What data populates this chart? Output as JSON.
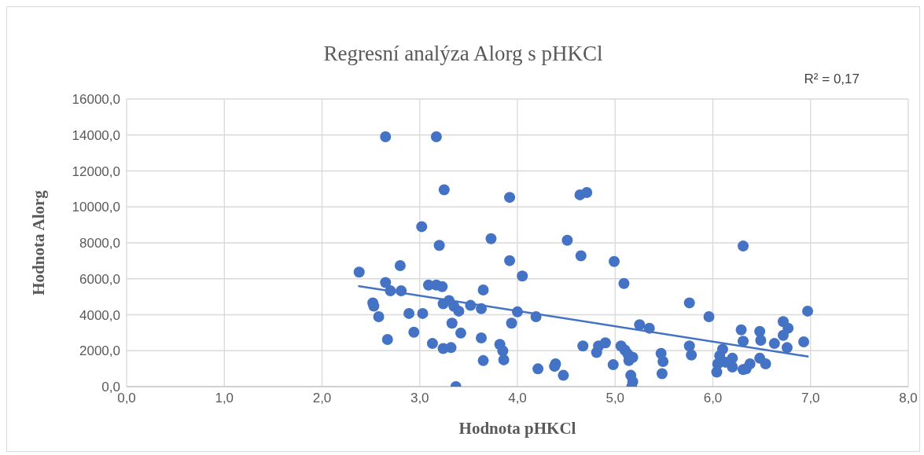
{
  "chart_data": {
    "type": "scatter",
    "title": "Regresní analýza Alorg s pHKCl",
    "xlabel": "Hodnota pHKCl",
    "ylabel": "Hodnota Alorg",
    "annotations": [
      "R² = 0,17"
    ],
    "xlim": [
      0,
      8
    ],
    "xticks": [
      {
        "value": 0,
        "label": "0,0"
      },
      {
        "value": 1,
        "label": "1,0"
      },
      {
        "value": 2,
        "label": "2,0"
      },
      {
        "value": 3,
        "label": "3,0"
      },
      {
        "value": 4,
        "label": "4,0"
      },
      {
        "value": 5,
        "label": "5,0"
      },
      {
        "value": 6,
        "label": "6,0"
      },
      {
        "value": 7,
        "label": "7,0"
      },
      {
        "value": 8,
        "label": "8,0"
      }
    ],
    "ylim": [
      0,
      16000
    ],
    "yticks": [
      {
        "value": 0,
        "label": "0,0"
      },
      {
        "value": 2000,
        "label": "2000,0"
      },
      {
        "value": 4000,
        "label": "4000,0"
      },
      {
        "value": 6000,
        "label": "6000,0"
      },
      {
        "value": 8000,
        "label": "8000,0"
      },
      {
        "value": 10000,
        "label": "10000,0"
      },
      {
        "value": 12000,
        "label": "12000,0"
      },
      {
        "value": 14000,
        "label": "14000,0"
      },
      {
        "value": 16000,
        "label": "16000,0"
      }
    ],
    "grid": true,
    "series": [
      {
        "marker": "circle",
        "color": "#4472c4",
        "x": [
          2.38,
          2.52,
          2.53,
          2.58,
          2.65,
          2.67,
          2.7,
          2.8,
          2.81,
          2.89,
          2.94,
          3.02,
          3.03,
          3.09,
          3.13,
          3.17,
          3.2,
          3.23,
          3.24,
          3.24,
          3.3,
          3.32,
          3.33,
          3.35,
          3.37,
          3.4,
          3.42,
          3.52,
          3.63,
          3.63,
          3.65,
          3.65,
          3.73,
          3.82,
          3.85,
          3.86,
          3.92,
          3.92,
          3.94,
          4.0,
          4.05,
          4.19,
          4.21,
          4.38,
          4.39,
          4.47,
          4.51,
          4.65,
          4.67,
          4.64,
          4.71,
          4.81,
          4.83,
          4.9,
          4.98,
          4.99,
          5.06,
          5.09,
          5.1,
          5.13,
          5.14,
          5.16,
          5.18,
          5.17,
          5.18,
          5.25,
          5.35,
          5.47,
          5.48,
          5.49,
          5.76,
          5.76,
          5.78,
          5.96,
          6.04,
          6.05,
          6.07,
          6.1,
          6.13,
          6.2,
          6.2,
          6.29,
          6.31,
          6.31,
          6.31,
          6.34,
          6.38,
          6.48,
          6.49,
          6.48,
          6.54,
          6.63,
          6.72,
          6.77,
          6.72,
          6.76,
          6.93,
          6.97,
          2.65,
          3.17,
          3.25
        ],
        "values": [
          6370,
          4660,
          4480,
          3890,
          5790,
          2620,
          5330,
          6730,
          5330,
          4070,
          3030,
          8900,
          4070,
          5650,
          2400,
          5650,
          7860,
          5560,
          4610,
          2120,
          4790,
          2170,
          3530,
          4470,
          0,
          4200,
          2980,
          4520,
          2710,
          4340,
          1450,
          5380,
          8230,
          2350,
          1990,
          1490,
          10530,
          7010,
          3530,
          4160,
          6150,
          3890,
          990,
          1130,
          1270,
          630,
          8140,
          7280,
          2260,
          10670,
          10800,
          1900,
          2260,
          2440,
          1220,
          6960,
          2260,
          5740,
          2030,
          1810,
          1450,
          630,
          270,
          0,
          1630,
          3440,
          3250,
          1850,
          720,
          1400,
          4660,
          2260,
          1760,
          3890,
          810,
          1270,
          1720,
          2080,
          1360,
          1090,
          1580,
          3160,
          7820,
          950,
          2530,
          990,
          1270,
          3070,
          2580,
          1580,
          1270,
          2400,
          3620,
          3250,
          2850,
          2170,
          2490,
          4200,
          13900,
          13900,
          10950
        ]
      },
      {
        "type": "line",
        "marker": "none",
        "color": "#4472c4",
        "x": [
          2.37,
          6.98
        ],
        "values": [
          5600,
          1670
        ]
      }
    ]
  }
}
